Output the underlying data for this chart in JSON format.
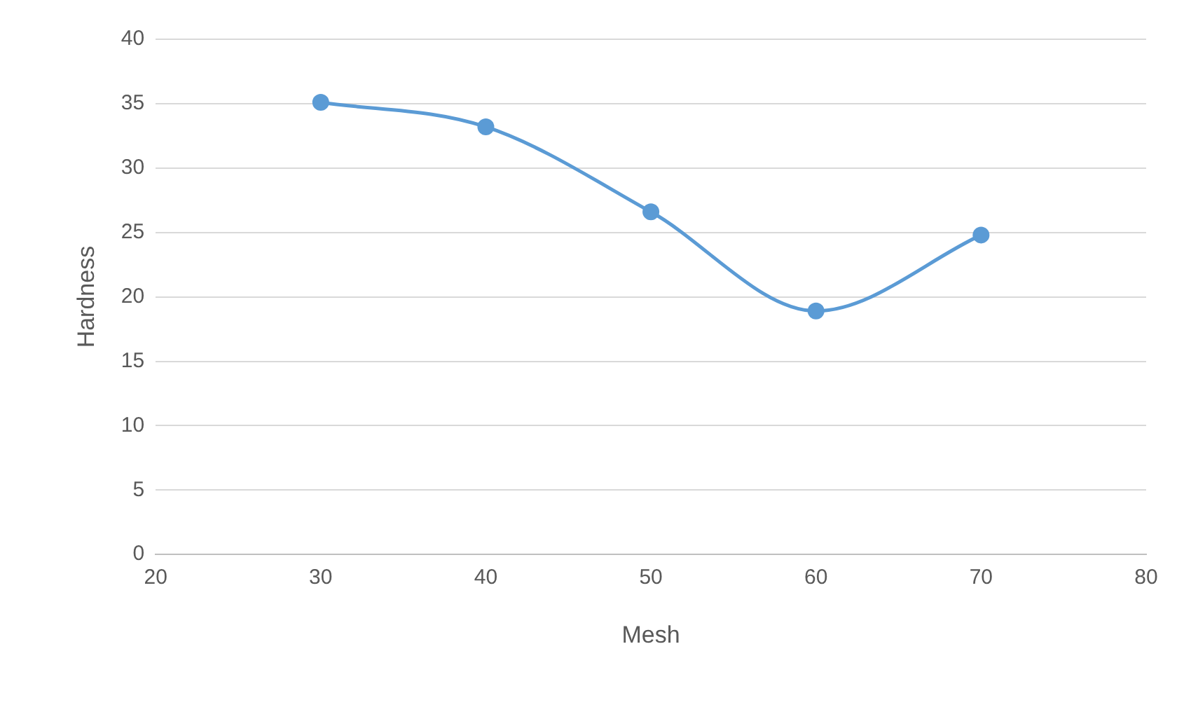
{
  "chart_data": {
    "type": "line",
    "xlabel": "Mesh",
    "ylabel": "Hardness",
    "x": [
      30,
      40,
      50,
      60,
      70
    ],
    "series": [
      {
        "color": "#5b9bd5",
        "values": [
          35.1,
          33.2,
          26.6,
          18.9,
          24.8
        ]
      }
    ],
    "xlim": [
      20,
      80
    ],
    "xticks": [
      20,
      30,
      40,
      50,
      60,
      70,
      80
    ],
    "ylim": [
      0,
      40
    ],
    "yticks": [
      0,
      5,
      10,
      15,
      20,
      25,
      30,
      35,
      40
    ],
    "grid": "y",
    "legend": false,
    "marker": "circle",
    "line_style": "solid"
  }
}
